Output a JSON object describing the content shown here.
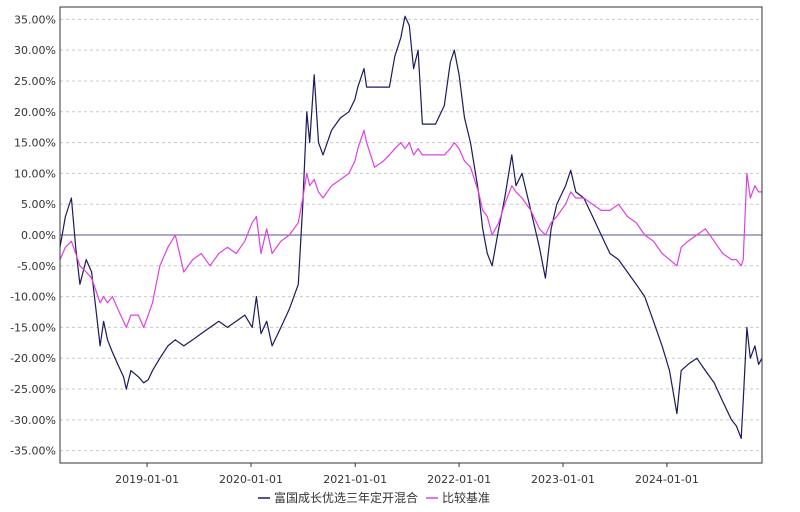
{
  "chart_data": {
    "type": "line",
    "title": "",
    "xlabel": "",
    "ylabel": "",
    "x_ticks": [
      "2019-01-01",
      "2020-01-01",
      "2021-01-01",
      "2022-01-01",
      "2023-01-01",
      "2024-01-01"
    ],
    "x_range": [
      "2018-03-01",
      "2024-11-30"
    ],
    "y_ticks": [
      "35.00%",
      "30.00%",
      "25.00%",
      "20.00%",
      "15.00%",
      "10.00%",
      "5.00%",
      "0.00%",
      "-5.00%",
      "-10.00%",
      "-15.00%",
      "-20.00%",
      "-25.00%",
      "-30.00%",
      "-35.00%"
    ],
    "ylim": [
      -37,
      37
    ],
    "grid": true,
    "legend_position": "bottom",
    "series": [
      {
        "name": "富国成长优选三年定开混合",
        "color": "#1a1a5e",
        "points": [
          [
            "2018-03-01",
            -2
          ],
          [
            "2018-03-20",
            3
          ],
          [
            "2018-04-10",
            6
          ],
          [
            "2018-04-25",
            -2
          ],
          [
            "2018-05-10",
            -8
          ],
          [
            "2018-06-01",
            -4
          ],
          [
            "2018-06-20",
            -6
          ],
          [
            "2018-07-05",
            -12
          ],
          [
            "2018-07-20",
            -18
          ],
          [
            "2018-08-01",
            -14
          ],
          [
            "2018-08-15",
            -17
          ],
          [
            "2018-09-01",
            -19
          ],
          [
            "2018-09-20",
            -21
          ],
          [
            "2018-10-10",
            -23
          ],
          [
            "2018-10-20",
            -25
          ],
          [
            "2018-11-05",
            -22
          ],
          [
            "2018-12-01",
            -23
          ],
          [
            "2018-12-20",
            -24
          ],
          [
            "2019-01-05",
            -23.5
          ],
          [
            "2019-01-20",
            -22
          ],
          [
            "2019-02-15",
            -20
          ],
          [
            "2019-03-15",
            -18
          ],
          [
            "2019-04-10",
            -17
          ],
          [
            "2019-05-10",
            -18
          ],
          [
            "2019-06-10",
            -17
          ],
          [
            "2019-07-10",
            -16
          ],
          [
            "2019-08-10",
            -15
          ],
          [
            "2019-09-10",
            -14
          ],
          [
            "2019-10-10",
            -15
          ],
          [
            "2019-11-10",
            -14
          ],
          [
            "2019-12-10",
            -13
          ],
          [
            "2020-01-05",
            -15
          ],
          [
            "2020-01-20",
            -10
          ],
          [
            "2020-02-05",
            -16
          ],
          [
            "2020-02-25",
            -14
          ],
          [
            "2020-03-15",
            -18
          ],
          [
            "2020-04-15",
            -15
          ],
          [
            "2020-05-15",
            -12
          ],
          [
            "2020-06-15",
            -8
          ],
          [
            "2020-07-01",
            5
          ],
          [
            "2020-07-15",
            20
          ],
          [
            "2020-07-25",
            15
          ],
          [
            "2020-08-10",
            26
          ],
          [
            "2020-08-25",
            15
          ],
          [
            "2020-09-10",
            13
          ],
          [
            "2020-10-10",
            17
          ],
          [
            "2020-11-10",
            19
          ],
          [
            "2020-12-10",
            20
          ],
          [
            "2020-12-31",
            22
          ],
          [
            "2021-01-10",
            24
          ],
          [
            "2021-02-01",
            27
          ],
          [
            "2021-02-10",
            24
          ],
          [
            "2021-03-10",
            24
          ],
          [
            "2021-04-10",
            24
          ],
          [
            "2021-05-01",
            24
          ],
          [
            "2021-05-20",
            29
          ],
          [
            "2021-06-10",
            32
          ],
          [
            "2021-06-25",
            35.5
          ],
          [
            "2021-07-10",
            34
          ],
          [
            "2021-07-25",
            27
          ],
          [
            "2021-08-10",
            30
          ],
          [
            "2021-08-25",
            18
          ],
          [
            "2021-09-10",
            18
          ],
          [
            "2021-10-10",
            18
          ],
          [
            "2021-11-10",
            21
          ],
          [
            "2021-12-01",
            28
          ],
          [
            "2021-12-15",
            30
          ],
          [
            "2022-01-01",
            26
          ],
          [
            "2022-01-20",
            19
          ],
          [
            "2022-02-10",
            15
          ],
          [
            "2022-03-10",
            7
          ],
          [
            "2022-03-25",
            1
          ],
          [
            "2022-04-10",
            -3
          ],
          [
            "2022-04-27",
            -5
          ],
          [
            "2022-05-20",
            1
          ],
          [
            "2022-06-10",
            6
          ],
          [
            "2022-07-05",
            13
          ],
          [
            "2022-07-20",
            8
          ],
          [
            "2022-08-10",
            10
          ],
          [
            "2022-09-10",
            4
          ],
          [
            "2022-10-10",
            -2
          ],
          [
            "2022-10-31",
            -7
          ],
          [
            "2022-11-20",
            1
          ],
          [
            "2022-12-10",
            5
          ],
          [
            "2023-01-10",
            8
          ],
          [
            "2023-01-28",
            10.5
          ],
          [
            "2023-02-15",
            7
          ],
          [
            "2023-03-15",
            6
          ],
          [
            "2023-04-15",
            3
          ],
          [
            "2023-05-15",
            0
          ],
          [
            "2023-06-15",
            -3
          ],
          [
            "2023-07-15",
            -4
          ],
          [
            "2023-08-15",
            -6
          ],
          [
            "2023-09-15",
            -8
          ],
          [
            "2023-10-15",
            -10
          ],
          [
            "2023-11-15",
            -14
          ],
          [
            "2023-12-15",
            -18
          ],
          [
            "2024-01-10",
            -22
          ],
          [
            "2024-02-05",
            -29
          ],
          [
            "2024-02-20",
            -22
          ],
          [
            "2024-03-15",
            -21
          ],
          [
            "2024-04-15",
            -20
          ],
          [
            "2024-05-15",
            -22
          ],
          [
            "2024-06-15",
            -24
          ],
          [
            "2024-07-15",
            -27
          ],
          [
            "2024-08-15",
            -30
          ],
          [
            "2024-09-01",
            -31
          ],
          [
            "2024-09-18",
            -33
          ],
          [
            "2024-09-25",
            -27
          ],
          [
            "2024-10-08",
            -15
          ],
          [
            "2024-10-20",
            -20
          ],
          [
            "2024-11-05",
            -18
          ],
          [
            "2024-11-18",
            -21
          ],
          [
            "2024-11-30",
            -20
          ]
        ]
      },
      {
        "name": "比较基准",
        "color": "#e040e0",
        "points": [
          [
            "2018-03-01",
            -4
          ],
          [
            "2018-03-20",
            -2
          ],
          [
            "2018-04-10",
            -1
          ],
          [
            "2018-04-25",
            -3
          ],
          [
            "2018-05-10",
            -5
          ],
          [
            "2018-06-01",
            -6
          ],
          [
            "2018-06-20",
            -7
          ],
          [
            "2018-07-05",
            -9
          ],
          [
            "2018-07-20",
            -11
          ],
          [
            "2018-08-01",
            -10
          ],
          [
            "2018-08-15",
            -11
          ],
          [
            "2018-09-01",
            -10
          ],
          [
            "2018-09-20",
            -12
          ],
          [
            "2018-10-10",
            -14
          ],
          [
            "2018-10-20",
            -15
          ],
          [
            "2018-11-05",
            -13
          ],
          [
            "2018-12-01",
            -13
          ],
          [
            "2018-12-20",
            -15
          ],
          [
            "2019-01-05",
            -13
          ],
          [
            "2019-01-20",
            -11
          ],
          [
            "2019-02-15",
            -5
          ],
          [
            "2019-03-15",
            -2
          ],
          [
            "2019-04-10",
            0
          ],
          [
            "2019-05-10",
            -6
          ],
          [
            "2019-06-10",
            -4
          ],
          [
            "2019-07-10",
            -3
          ],
          [
            "2019-08-10",
            -5
          ],
          [
            "2019-09-10",
            -3
          ],
          [
            "2019-10-10",
            -2
          ],
          [
            "2019-11-10",
            -3
          ],
          [
            "2019-12-10",
            -1
          ],
          [
            "2020-01-05",
            2
          ],
          [
            "2020-01-20",
            3
          ],
          [
            "2020-02-05",
            -3
          ],
          [
            "2020-02-25",
            1
          ],
          [
            "2020-03-15",
            -3
          ],
          [
            "2020-04-15",
            -1
          ],
          [
            "2020-05-15",
            0
          ],
          [
            "2020-06-15",
            2
          ],
          [
            "2020-07-01",
            6
          ],
          [
            "2020-07-15",
            10
          ],
          [
            "2020-07-25",
            8
          ],
          [
            "2020-08-10",
            9
          ],
          [
            "2020-08-25",
            7
          ],
          [
            "2020-09-10",
            6
          ],
          [
            "2020-10-10",
            8
          ],
          [
            "2020-11-10",
            9
          ],
          [
            "2020-12-10",
            10
          ],
          [
            "2020-12-31",
            12
          ],
          [
            "2021-01-10",
            14
          ],
          [
            "2021-02-01",
            17
          ],
          [
            "2021-02-10",
            15
          ],
          [
            "2021-03-10",
            11
          ],
          [
            "2021-04-10",
            12
          ],
          [
            "2021-05-01",
            13
          ],
          [
            "2021-05-20",
            14
          ],
          [
            "2021-06-10",
            15
          ],
          [
            "2021-06-25",
            14
          ],
          [
            "2021-07-10",
            15
          ],
          [
            "2021-07-25",
            13
          ],
          [
            "2021-08-10",
            14
          ],
          [
            "2021-08-25",
            13
          ],
          [
            "2021-09-10",
            13
          ],
          [
            "2021-10-10",
            13
          ],
          [
            "2021-11-10",
            13
          ],
          [
            "2021-12-01",
            14
          ],
          [
            "2021-12-15",
            15
          ],
          [
            "2022-01-01",
            14
          ],
          [
            "2022-01-20",
            12
          ],
          [
            "2022-02-10",
            11
          ],
          [
            "2022-03-10",
            7
          ],
          [
            "2022-03-25",
            4
          ],
          [
            "2022-04-10",
            3
          ],
          [
            "2022-04-27",
            0
          ],
          [
            "2022-05-20",
            2
          ],
          [
            "2022-06-10",
            5
          ],
          [
            "2022-07-05",
            8
          ],
          [
            "2022-07-20",
            7
          ],
          [
            "2022-08-10",
            6
          ],
          [
            "2022-09-10",
            4
          ],
          [
            "2022-10-10",
            1
          ],
          [
            "2022-10-31",
            0
          ],
          [
            "2022-11-20",
            2
          ],
          [
            "2022-12-10",
            3
          ],
          [
            "2023-01-10",
            5
          ],
          [
            "2023-01-28",
            7
          ],
          [
            "2023-02-15",
            6
          ],
          [
            "2023-03-15",
            6
          ],
          [
            "2023-04-15",
            5
          ],
          [
            "2023-05-15",
            4
          ],
          [
            "2023-06-15",
            4
          ],
          [
            "2023-07-15",
            5
          ],
          [
            "2023-08-15",
            3
          ],
          [
            "2023-09-15",
            2
          ],
          [
            "2023-10-15",
            0
          ],
          [
            "2023-11-15",
            -1
          ],
          [
            "2023-12-15",
            -3
          ],
          [
            "2024-01-10",
            -4
          ],
          [
            "2024-02-05",
            -5
          ],
          [
            "2024-02-20",
            -2
          ],
          [
            "2024-03-15",
            -1
          ],
          [
            "2024-04-15",
            0
          ],
          [
            "2024-05-15",
            1
          ],
          [
            "2024-06-15",
            -1
          ],
          [
            "2024-07-15",
            -3
          ],
          [
            "2024-08-15",
            -4
          ],
          [
            "2024-09-01",
            -4
          ],
          [
            "2024-09-18",
            -5
          ],
          [
            "2024-09-25",
            -4
          ],
          [
            "2024-10-08",
            10
          ],
          [
            "2024-10-20",
            6
          ],
          [
            "2024-11-05",
            8
          ],
          [
            "2024-11-18",
            7
          ],
          [
            "2024-11-30",
            7
          ]
        ]
      }
    ]
  }
}
